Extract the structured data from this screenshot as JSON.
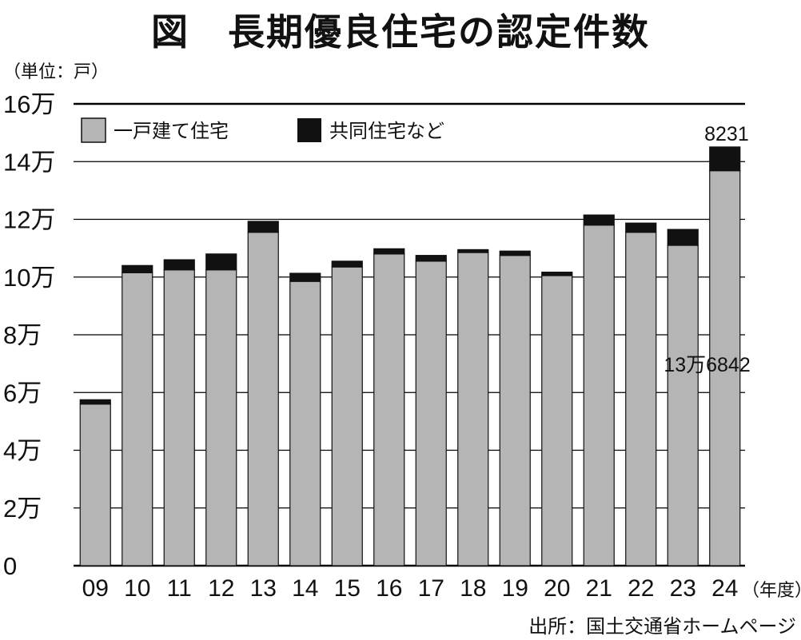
{
  "title": "図　長期優良住宅の認定件数",
  "unit_label": "（単位：戸）",
  "source": "出所：国土交通省ホームページ",
  "colors": {
    "detached": "#b5b5b5",
    "collective": "#111111",
    "gridline": "#000000"
  },
  "chart_data": {
    "type": "bar",
    "stacked": true,
    "title": "図　長期優良住宅の認定件数",
    "ylabel": "（単位：戸）",
    "xlabel": "（年度）",
    "ylim": [
      0,
      160000
    ],
    "yticks": [
      0,
      20000,
      40000,
      60000,
      80000,
      100000,
      120000,
      140000,
      160000
    ],
    "ytick_labels": [
      "0",
      "2万",
      "4万",
      "6万",
      "8万",
      "10万",
      "12万",
      "14万",
      "16万"
    ],
    "categories": [
      "09",
      "10",
      "11",
      "12",
      "13",
      "14",
      "15",
      "16",
      "17",
      "18",
      "19",
      "20",
      "21",
      "22",
      "23",
      "24"
    ],
    "legend_position": "top-left",
    "grid": true,
    "series": [
      {
        "name": "一戸建て住宅",
        "color": "#b5b5b5",
        "values": [
          56000,
          101500,
          102500,
          102500,
          115500,
          98500,
          103500,
          108000,
          105500,
          108500,
          107500,
          100500,
          118000,
          115500,
          111000,
          136842
        ]
      },
      {
        "name": "共同住宅など",
        "color": "#111111",
        "values": [
          1500,
          2500,
          3500,
          5500,
          3800,
          2800,
          2000,
          1800,
          2000,
          1000,
          1500,
          1200,
          3500,
          3200,
          5500,
          8231
        ]
      }
    ],
    "annotations": [
      {
        "category": "24",
        "series": "共同住宅など",
        "text": "8231"
      },
      {
        "category": "24",
        "series": "一戸建て住宅",
        "text": "13万6842"
      }
    ]
  }
}
